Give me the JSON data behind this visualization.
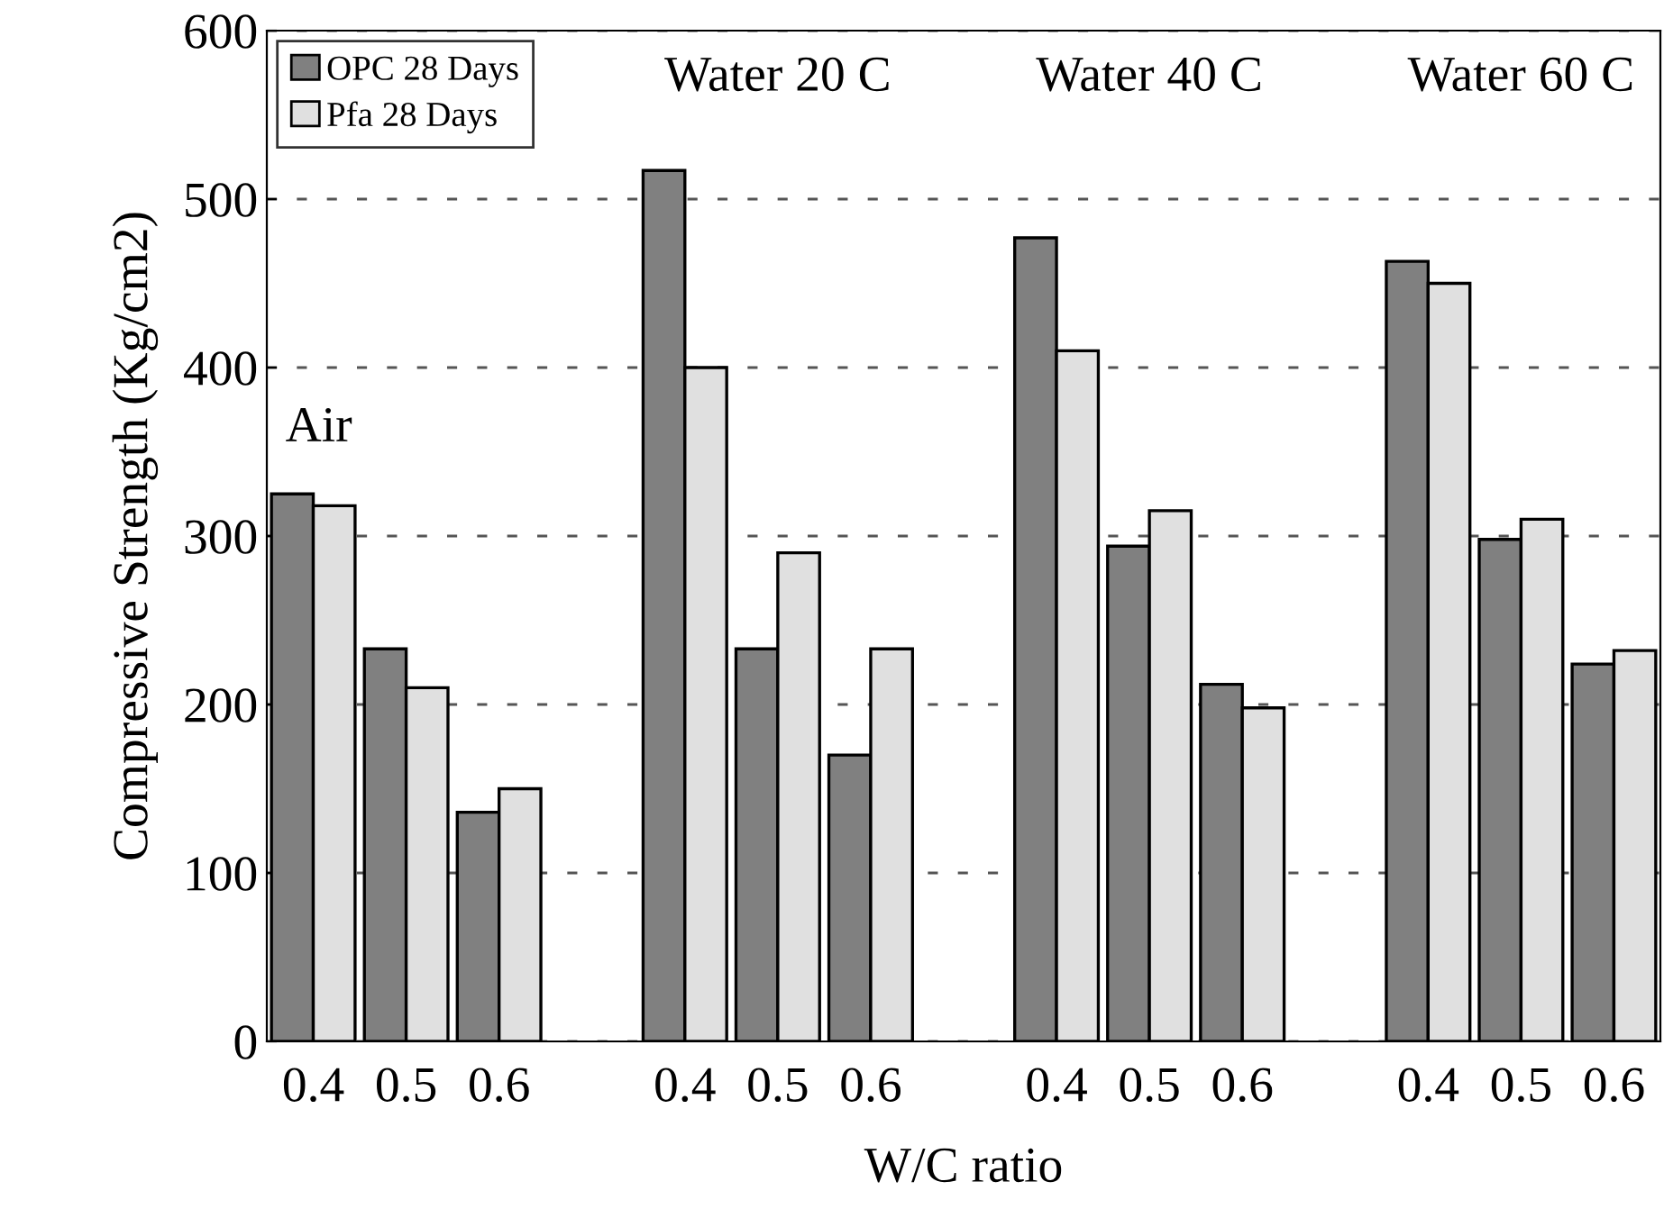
{
  "chart_data": {
    "type": "bar",
    "xlabel": "W/C ratio",
    "ylabel": "Compressive Strength (Kg/cm2)",
    "categories": [
      "0.4",
      "0.5",
      "0.6",
      null,
      "0.4",
      "0.5",
      "0.6",
      null,
      "0.4",
      "0.5",
      "0.6",
      null,
      "0.4",
      "0.5",
      "0.6"
    ],
    "series": [
      {
        "name": "OPC 28 Days",
        "color": "#808080",
        "values": [
          325,
          233,
          136,
          null,
          517,
          233,
          170,
          null,
          477,
          294,
          212,
          null,
          463,
          298,
          224
        ]
      },
      {
        "name": "Pfa 28 Days",
        "color": "#e0e0e0",
        "values": [
          318,
          210,
          150,
          null,
          400,
          290,
          233,
          null,
          410,
          315,
          198,
          null,
          450,
          310,
          232
        ]
      }
    ],
    "ylim": [
      0,
      600
    ],
    "yticks": [
      0,
      100,
      200,
      300,
      400,
      500,
      600
    ],
    "grid": "y",
    "legend": "top left",
    "annotations": [
      "Air",
      "Water 20 C",
      "Water 40 C",
      "Water 60 C"
    ]
  }
}
